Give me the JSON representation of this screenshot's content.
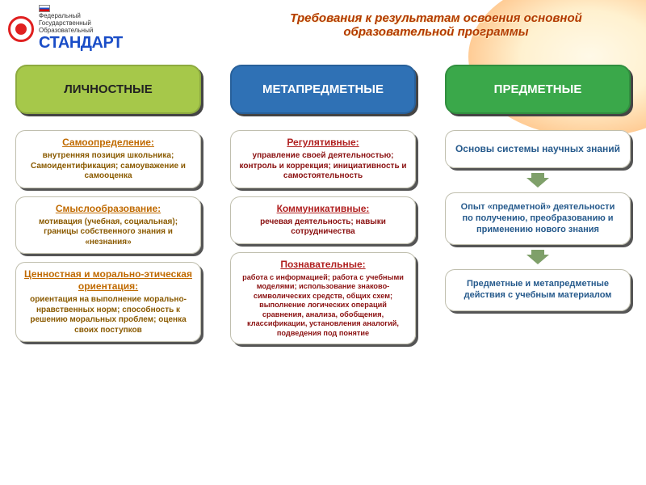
{
  "logo": {
    "line1": "Федеральный",
    "line2": "Государственный",
    "line3": "Образовательный",
    "brand": "СТАНДАРТ"
  },
  "title": "Требования к результатам освоения основной образовательной  программы",
  "columns": {
    "col1": {
      "header": "ЛИЧНОСТНЫЕ",
      "header_bg": "#a6c84a",
      "cards": [
        {
          "hd": "Самоопределение:",
          "body": "внутренняя позиция школьника; Самоидентификация; самоуважение и самооценка"
        },
        {
          "hd": "Смыслообразование:",
          "body": "мотивация (учебная, социальная); границы собственного знания и «незнания»"
        },
        {
          "hd": "Ценностная и морально-этическая ориентация:",
          "body": "ориентация на выполнение морально-нравственных норм; способность к решению моральных проблем; оценка своих поступков"
        }
      ]
    },
    "col2": {
      "header": "МЕТАПРЕДМЕТНЫЕ",
      "header_bg": "#2f71b5",
      "header_color": "#ffffff",
      "cards": [
        {
          "hd": "Регулятивные:",
          "body": "управление своей деятельностью; контроль и коррекция; инициативность и самостоятельность"
        },
        {
          "hd": "Коммуникативные:",
          "body": "речевая деятельность; навыки сотрудничества"
        },
        {
          "hd": "Познавательные:",
          "body": "работа с информацией; работа с учебными моделями; использование знаково-символических средств, общих схем; выполнение логических операций сравнения,  анализа, обобщения, классификации, установления аналогий, подведения под понятие"
        }
      ]
    },
    "col3": {
      "header": "ПРЕДМЕТНЫЕ",
      "header_bg": "#3aa84a",
      "header_color": "#ffffff",
      "cards": [
        {
          "hd": "",
          "body": "Основы системы научных знаний"
        },
        {
          "hd": "",
          "body": "Опыт «предметной» деятельности по получению, преобразованию и применению нового знания"
        },
        {
          "hd": "",
          "body": "Предметные и метапредметные действия с учебным материалом"
        }
      ]
    }
  },
  "style": {
    "card_hd_color_col1": "#c06a00",
    "card_hd_color_col2": "#b02020",
    "card_text_color_col3": "#265a8c",
    "arrow_color": "#7fa06a",
    "title_color": "#b33a00",
    "background": "#ffffff"
  }
}
